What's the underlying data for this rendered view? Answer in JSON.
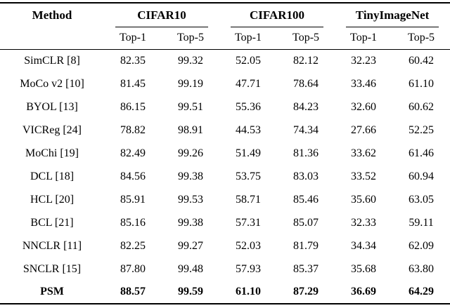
{
  "table": {
    "method_header": "Method",
    "groups": [
      {
        "label": "CIFAR10"
      },
      {
        "label": "CIFAR100"
      },
      {
        "label": "TinyImageNet"
      }
    ],
    "subheaders": [
      "Top-1",
      "Top-5"
    ],
    "rows": [
      {
        "method": "SimCLR [8]",
        "values": [
          "82.35",
          "99.32",
          "52.05",
          "82.12",
          "32.23",
          "60.42"
        ],
        "bold": false
      },
      {
        "method": "MoCo v2 [10]",
        "values": [
          "81.45",
          "99.19",
          "47.71",
          "78.64",
          "33.46",
          "61.10"
        ],
        "bold": false
      },
      {
        "method": "BYOL [13]",
        "values": [
          "86.15",
          "99.51",
          "55.36",
          "84.23",
          "32.60",
          "60.62"
        ],
        "bold": false
      },
      {
        "method": "VICReg [24]",
        "values": [
          "78.82",
          "98.91",
          "44.53",
          "74.34",
          "27.66",
          "52.25"
        ],
        "bold": false
      },
      {
        "method": "MoChi [19]",
        "values": [
          "82.49",
          "99.26",
          "51.49",
          "81.36",
          "33.62",
          "61.46"
        ],
        "bold": false
      },
      {
        "method": "DCL [18]",
        "values": [
          "84.56",
          "99.38",
          "53.75",
          "83.03",
          "33.52",
          "60.94"
        ],
        "bold": false
      },
      {
        "method": "HCL [20]",
        "values": [
          "85.91",
          "99.53",
          "58.71",
          "85.46",
          "35.60",
          "63.05"
        ],
        "bold": false
      },
      {
        "method": "BCL [21]",
        "values": [
          "85.16",
          "99.38",
          "57.31",
          "85.07",
          "32.33",
          "59.11"
        ],
        "bold": false
      },
      {
        "method": "NNCLR [11]",
        "values": [
          "82.25",
          "99.27",
          "52.03",
          "81.79",
          "34.34",
          "62.09"
        ],
        "bold": false
      },
      {
        "method": "SNCLR [15]",
        "values": [
          "87.80",
          "99.48",
          "57.93",
          "85.37",
          "35.68",
          "63.80"
        ],
        "bold": false
      },
      {
        "method": "PSM",
        "values": [
          "88.57",
          "99.59",
          "61.10",
          "87.29",
          "36.69",
          "64.29"
        ],
        "bold": true
      }
    ]
  }
}
